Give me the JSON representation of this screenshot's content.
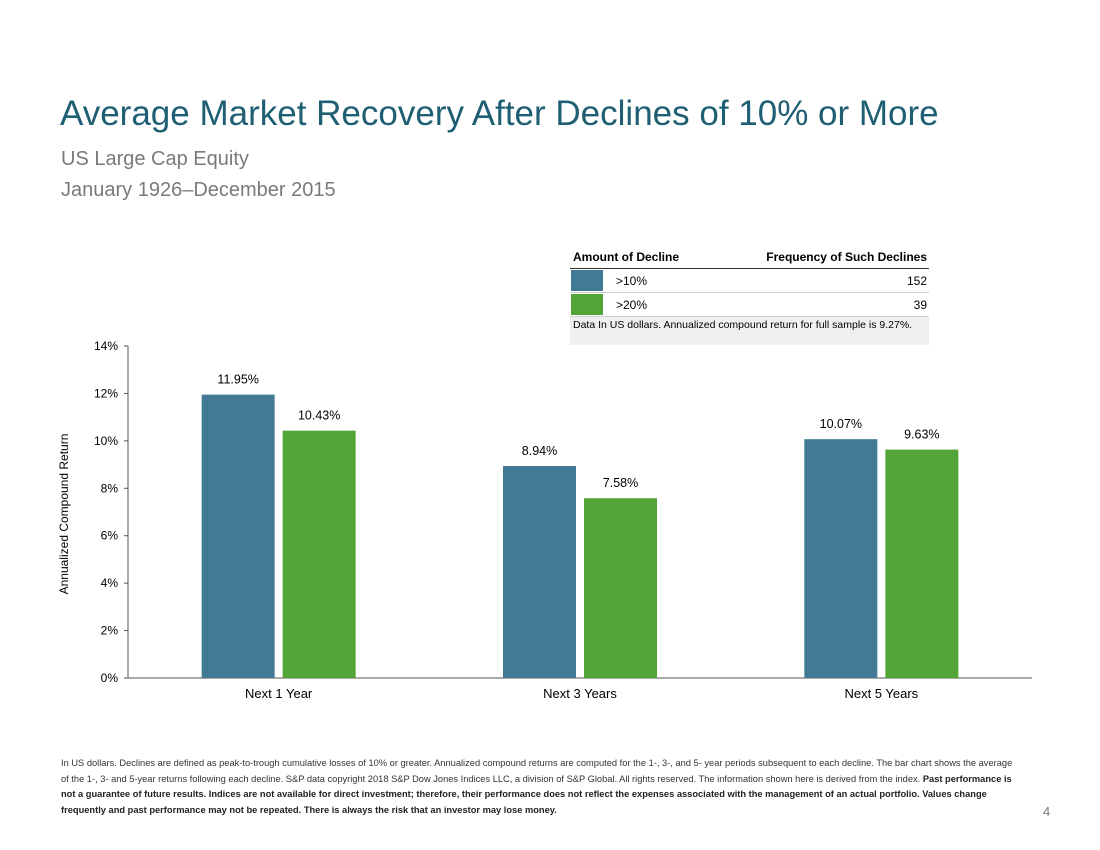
{
  "slide": {
    "title": "Average Market Recovery After Declines of 10% or More",
    "subtitle_1": "US Large Cap Equity",
    "subtitle_2": "January 1926–December 2015",
    "page_number": "4"
  },
  "legend_table": {
    "header_left": "Amount of Decline",
    "header_right": "Frequency of Such Declines",
    "rows": [
      {
        "label": ">10%",
        "count": "152",
        "color": "#427a95"
      },
      {
        "label": ">20%",
        "count": "39",
        "color": "#53a436"
      }
    ],
    "note": "Data In US dollars. Annualized compound return for full sample is 9.27%."
  },
  "chart_data": {
    "type": "bar",
    "categories": [
      "Next 1 Year",
      "Next 3 Years",
      "Next 5 Years"
    ],
    "series": [
      {
        "values": [
          11.95,
          8.94,
          10.07
        ],
        "labels": [
          "11.95%",
          "8.94%",
          "10.07%"
        ],
        "color": "#427a95"
      },
      {
        "values": [
          10.43,
          7.58,
          9.63
        ],
        "labels": [
          "10.43%",
          "7.58%",
          "9.63%"
        ],
        "color": "#53a436"
      }
    ],
    "ylabel": "Annualized Compound Return",
    "ylim": [
      0,
      14
    ],
    "yticks": [
      "0%",
      "2%",
      "4%",
      "6%",
      "8%",
      "10%",
      "12%",
      "14%"
    ],
    "grid": false,
    "legend": "top-right"
  },
  "footnote": {
    "regular": "In US dollars. Declines are defined as peak-to-trough cumulative losses of 10% or greater. Annualized compound returns are computed for the 1-, 3-, and 5- year periods subsequent to each decline. The bar chart shows the average of the 1-, 3- and 5-year returns following each decline. S&P data copyright 2018 S&P Dow Jones Indices LLC, a division of S&P Global. All rights reserved. The information shown here is derived from the index.",
    "bold": "Past performance is not a guarantee of future results. Indices are not available for direct investment; therefore, their performance does not reflect the expenses associated with the management of an actual portfolio. Values change frequently and past performance may not be repeated. There is always the risk that an investor may lose money."
  }
}
